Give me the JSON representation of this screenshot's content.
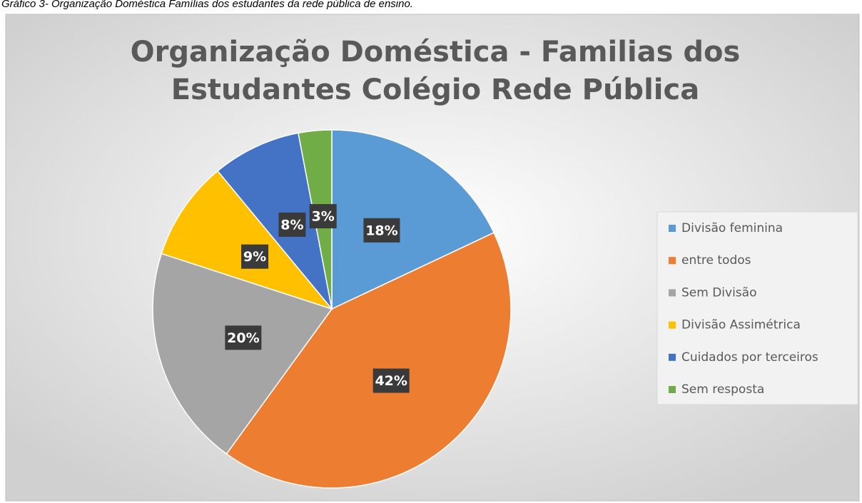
{
  "caption": "Gráfico 3- Organização Doméstica Famílias dos estudantes da rede pública de ensino.",
  "chart_data": {
    "type": "pie",
    "title": [
      "Organização Doméstica - Familias dos",
      "Estudantes Colégio Rede Pública"
    ],
    "categories": [
      "Divisão feminina",
      "entre todos",
      "Sem Divisão",
      "Divisão Assimétrica",
      "Cuidados por terceiros",
      "Sem resposta"
    ],
    "values": [
      18,
      42,
      20,
      9,
      8,
      3
    ],
    "value_labels": [
      "18%",
      "42%",
      "20%",
      "9%",
      "8%",
      "3%"
    ],
    "colors": [
      "#5b9bd5",
      "#ed7d31",
      "#a5a5a5",
      "#ffc000",
      "#4472c4",
      "#70ad47"
    ],
    "legend": "right"
  }
}
